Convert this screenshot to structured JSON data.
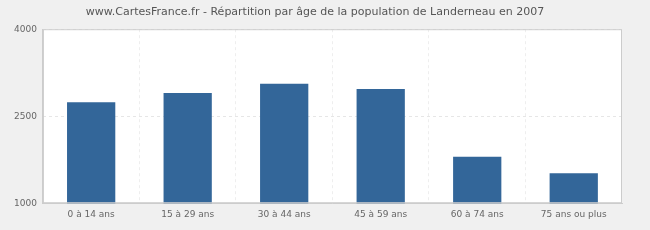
{
  "chart_data": {
    "type": "bar",
    "title": "www.CartesFrance.fr - Répartition par âge de la population de Landerneau en 2007",
    "categories": [
      "0 à 14 ans",
      "15 à 29 ans",
      "30 à 44 ans",
      "45 à 59 ans",
      "60 à 74 ans",
      "75 ans ou plus"
    ],
    "values": [
      2740,
      2900,
      3060,
      2970,
      1800,
      1515
    ],
    "color": "#336699",
    "ylim": [
      1000,
      4000
    ],
    "yticks": [
      1000,
      2500,
      4000
    ],
    "grid": true
  }
}
